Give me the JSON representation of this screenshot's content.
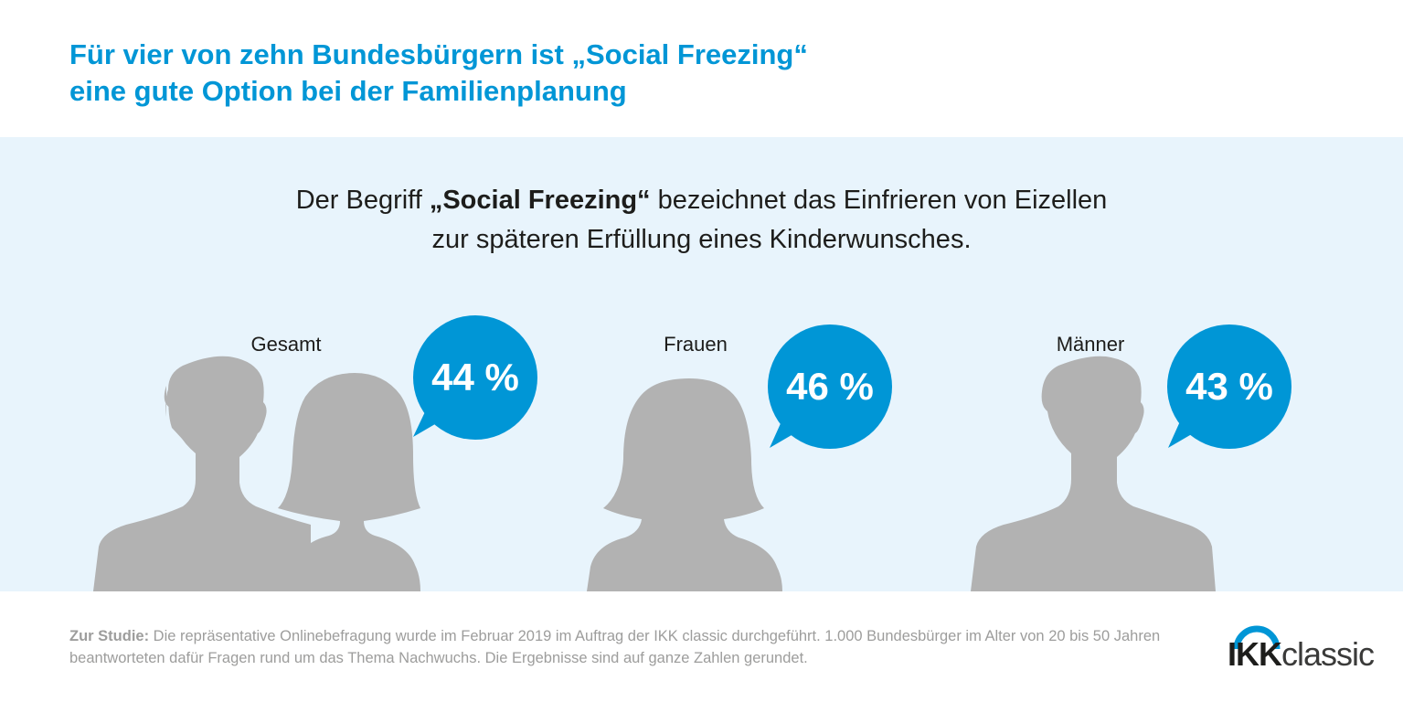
{
  "header": {
    "title_line1": "Für vier von zehn Bundesbürgern ist „Social Freezing“",
    "title_line2": "eine gute Option bei der Familienplanung"
  },
  "definition": {
    "line1_prefix": "Der Begriff ",
    "line1_term": "„Social Freezing“",
    "line1_suffix": " bezeichnet das Einfrieren von Eizellen",
    "line2": "zur späteren Erfüllung eines Kinderwunsches."
  },
  "groups": [
    {
      "label": "Gesamt",
      "value": "44 %"
    },
    {
      "label": "Frauen",
      "value": "46 %"
    },
    {
      "label": "Männer",
      "value": "43 %"
    }
  ],
  "footer": {
    "note_label": "Zur Studie:",
    "note_text": " Die repräsentative Onlinebefragung wurde im Februar 2019 im Auftrag der IKK classic durchgeführt. 1.000 Bundesbürger im Alter von 20 bis 50 Jahren beantworteten dafür Fragen rund um das Thema Nachwuchs. Die Ergebnisse sind auf ganze Zahlen gerundet."
  },
  "logo": {
    "brand_bold": "IKK",
    "brand_light": "classic"
  },
  "colors": {
    "accent": "#0096d6",
    "panel": "#e8f4fc",
    "silhouette": "#b2b2b2"
  }
}
